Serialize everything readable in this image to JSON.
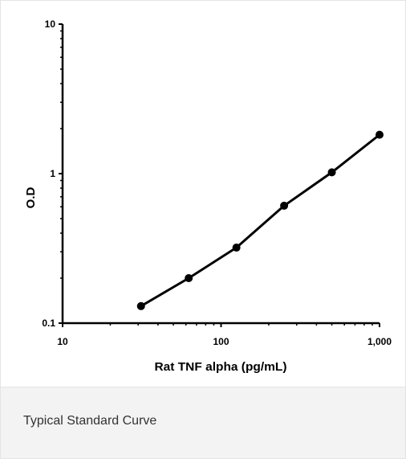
{
  "caption": "Typical Standard Curve",
  "chart_data": {
    "type": "line",
    "x_scale": "log",
    "y_scale": "log",
    "xlabel": "Rat TNF alpha (pg/mL)",
    "ylabel": "O.D",
    "xlim": [
      10,
      1000
    ],
    "ylim": [
      0.1,
      10
    ],
    "x_ticks": [
      10,
      100,
      1000
    ],
    "x_tick_labels": [
      "10",
      "100",
      "1,000"
    ],
    "y_ticks": [
      0.1,
      1,
      10
    ],
    "y_tick_labels": [
      "0.1",
      "1",
      "10"
    ],
    "grid": false,
    "legend": "none",
    "series": [
      {
        "x": [
          31.25,
          62.5,
          125,
          250,
          500,
          1000
        ],
        "y": [
          0.13,
          0.2,
          0.32,
          0.61,
          1.02,
          1.82
        ]
      }
    ],
    "colors": {
      "line": "#000000"
    }
  }
}
